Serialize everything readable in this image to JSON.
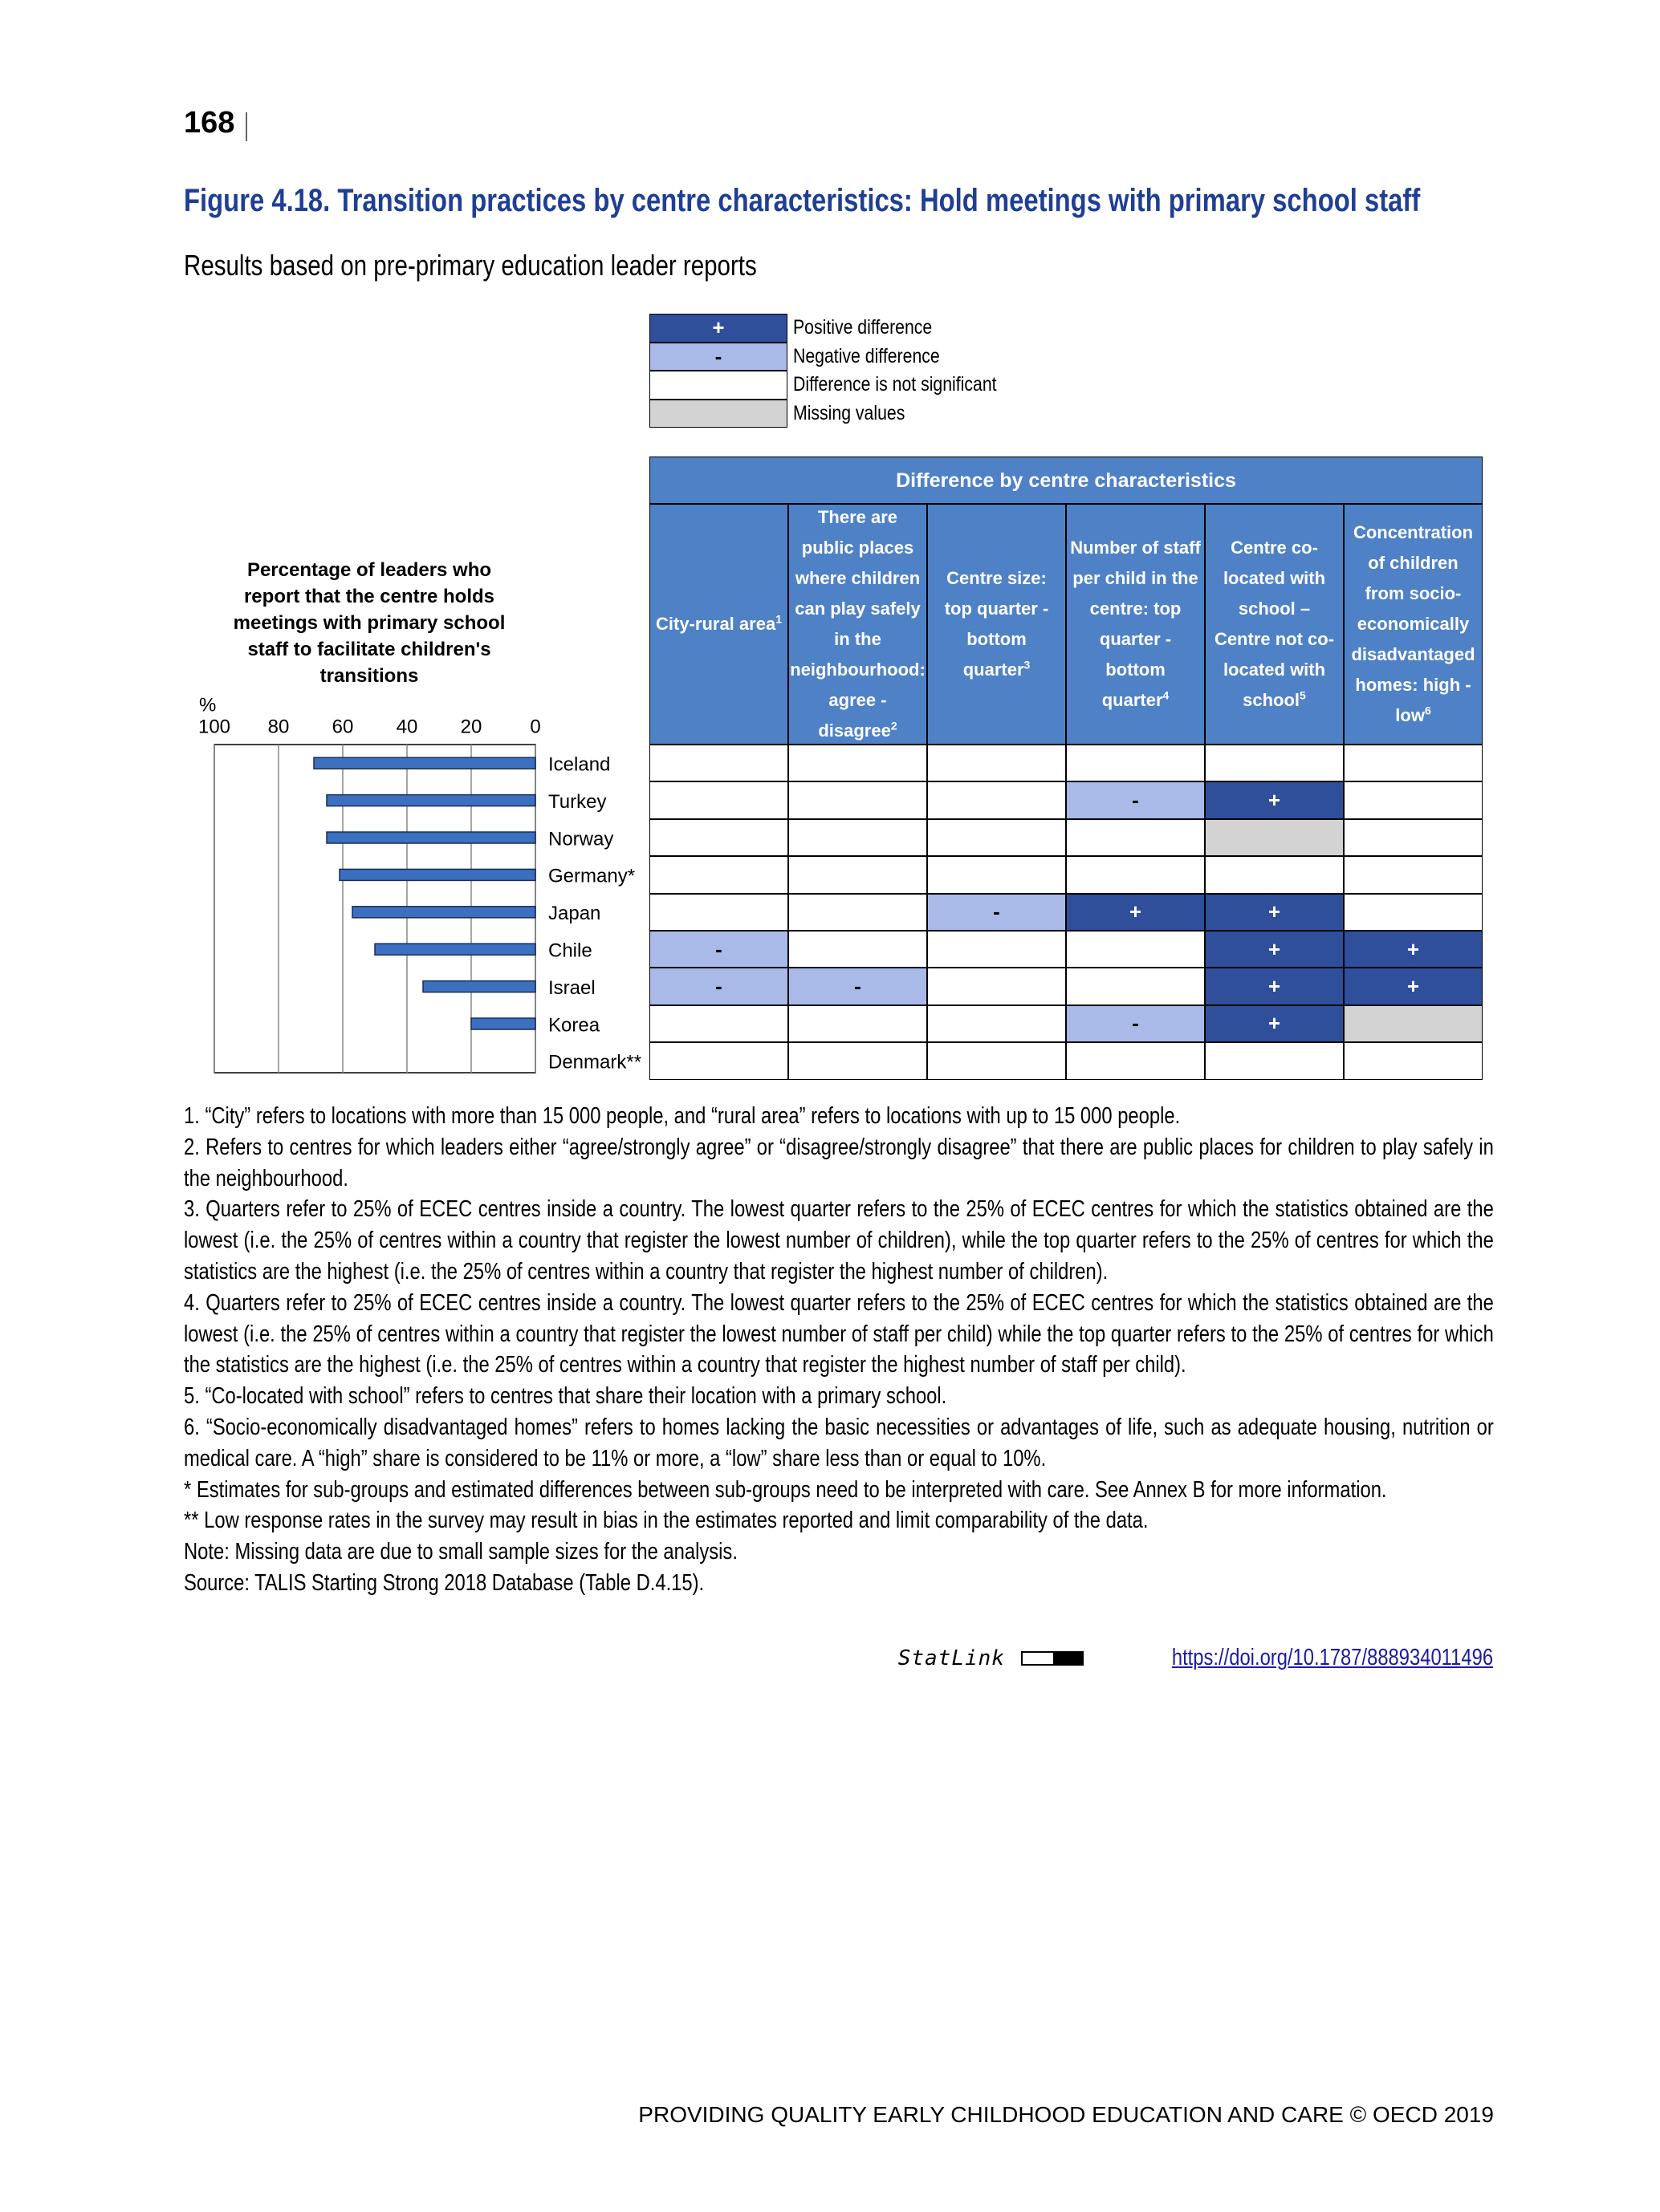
{
  "page_number": "168",
  "figure": {
    "title": "Figure 4.18. Transition practices by centre characteristics: Hold meetings with primary school staff",
    "subtitle": "Results based on pre-primary education leader reports"
  },
  "legend": [
    {
      "symbol": "+",
      "label": "Positive difference",
      "color": "#2f4f9b"
    },
    {
      "symbol": "-",
      "label": "Negative difference",
      "color": "#a9b9e8"
    },
    {
      "symbol": null,
      "label": "Difference is not significant",
      "color": "#ffffff"
    },
    {
      "symbol": null,
      "label": "Missing values",
      "color": "#d3d3d3"
    }
  ],
  "chart_data": {
    "type": "bar",
    "orientation": "horizontal",
    "title": "Percentage of leaders who report that the centre holds meetings with primary school staff to facilitate children's transitions",
    "unit": "%",
    "categories": [
      "Iceland",
      "Turkey",
      "Norway",
      "Germany*",
      "Japan",
      "Chile",
      "Israel",
      "Korea",
      "Denmark**"
    ],
    "values": [
      69,
      65,
      65,
      61,
      57,
      50,
      35,
      20,
      null
    ],
    "color": "#3b70c0",
    "xlim": [
      100,
      0
    ],
    "xticks": [
      100,
      80,
      60,
      40,
      20,
      0
    ],
    "grid": true
  },
  "table": {
    "title": "Difference by centre characteristics",
    "header_color": "#4f81c6",
    "columns": [
      {
        "text": "City-rural area",
        "note": "1"
      },
      {
        "text": "There are public places where children can play safely in the neighbourhood: agree - disagree",
        "note": "2"
      },
      {
        "text": "Centre size: top quarter - bottom quarter",
        "note": "3"
      },
      {
        "text": "Number of staff per child in the centre: top quarter - bottom quarter",
        "note": "4"
      },
      {
        "text": "Centre co-located with school – Centre not co-located with school",
        "note": "5"
      },
      {
        "text": "Concentration of children from socio-economically disadvantaged homes: high - low",
        "note": "6"
      }
    ],
    "rows": [
      [
        "#ffffff",
        "#ffffff",
        "#ffffff",
        "#ffffff",
        "#ffffff",
        "#ffffff"
      ],
      [
        "#ffffff",
        "#ffffff",
        "#ffffff",
        "#a9b9e8",
        "#2f4f9b",
        "#ffffff"
      ],
      [
        "#ffffff",
        "#ffffff",
        "#ffffff",
        "#ffffff",
        "#d3d3d3",
        "#ffffff"
      ],
      [
        "#ffffff",
        "#ffffff",
        "#ffffff",
        "#ffffff",
        "#ffffff",
        "#ffffff"
      ],
      [
        "#ffffff",
        "#ffffff",
        "#a9b9e8",
        "#2f4f9b",
        "#2f4f9b",
        "#ffffff"
      ],
      [
        "#a9b9e8",
        "#ffffff",
        "#ffffff",
        "#ffffff",
        "#2f4f9b",
        "#2f4f9b"
      ],
      [
        "#a9b9e8",
        "#a9b9e8",
        "#ffffff",
        "#ffffff",
        "#2f4f9b",
        "#2f4f9b"
      ],
      [
        "#ffffff",
        "#ffffff",
        "#ffffff",
        "#a9b9e8",
        "#2f4f9b",
        "#d3d3d3"
      ],
      [
        "#ffffff",
        "#ffffff",
        "#ffffff",
        "#ffffff",
        "#ffffff",
        "#ffffff"
      ]
    ]
  },
  "notes": [
    "1. “City” refers to locations with more than 15 000 people, and “rural area” refers to locations with up to 15 000 people.",
    "2. Refers to centres for which leaders either “agree/strongly agree” or “disagree/strongly disagree” that there are public places for children to play safely in the neighbourhood.",
    "3. Quarters refer to 25% of ECEC centres inside a country. The lowest quarter refers to the 25% of ECEC centres for which the statistics obtained are the lowest (i.e. the 25% of centres within a country that register the lowest number of children), while the top quarter refers to the 25% of centres for which the statistics are the highest (i.e. the 25% of centres within a country that register the highest number of children).",
    "4. Quarters refer to 25% of ECEC centres inside a country. The lowest quarter refers to the 25% of ECEC centres for which the statistics obtained are the lowest (i.e. the 25% of centres within a country that register the lowest number of staff per child) while the top quarter refers to the 25% of centres for which the statistics are the highest (i.e. the 25% of centres within a country that register the highest number of staff per child).",
    "5. “Co-located with school” refers to centres that share their location with a primary school.",
    "6. “Socio-economically disadvantaged homes” refers to homes lacking the basic necessities or advantages of life, such as adequate housing, nutrition or medical care. A “high” share is considered to be 11% or more, a “low” share less than or equal to 10%.",
    "* Estimates for sub-groups and estimated differences between sub-groups need to be interpreted with care. See Annex B for more information.",
    "** Low response rates in the survey may result in bias in the estimates reported and limit comparability of the data.",
    "Note: Missing data are due to small sample sizes for the analysis.",
    "Source: TALIS Starting Strong 2018 Database (Table D.4.15)."
  ],
  "statlink": {
    "label": "StatLink",
    "url": "https://doi.org/10.1787/888934011496"
  },
  "footer": "PROVIDING QUALITY EARLY CHILDHOOD EDUCATION AND CARE © OECD 2019"
}
